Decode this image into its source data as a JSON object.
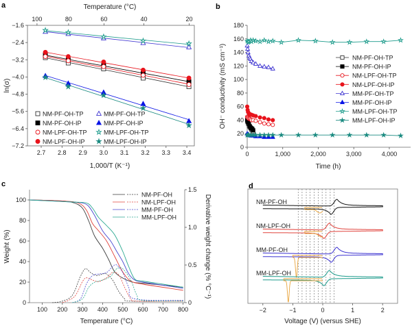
{
  "panel_labels": [
    "a",
    "b",
    "c",
    "d"
  ],
  "chart_data": [
    {
      "type": "scatter",
      "panel": "a",
      "xlabel": "1,000/T (K⁻¹)",
      "ylabel": "ln(σ)",
      "top_xlabel": "Temperature (°C)",
      "xlim": [
        2.634,
        3.436
      ],
      "ylim": [
        -7.2,
        -1.6
      ],
      "xticks": [
        2.7,
        2.8,
        2.9,
        3.0,
        3.1,
        3.2,
        3.3,
        3.4
      ],
      "xtick_labels": [
        "2.7",
        "2.8",
        "2.9",
        "3.0",
        "3.1",
        "3.2",
        "3.3",
        "3.4"
      ],
      "yticks": [
        -1.6,
        -2.4,
        -3.2,
        -4.0,
        -4.8,
        -5.6,
        -6.4,
        -7.2
      ],
      "ytick_labels": [
        "−1.6",
        "−2.4",
        "−3.2",
        "−4.0",
        "−4.8",
        "−5.6",
        "−6.4",
        "−7.2"
      ],
      "top_xticks_celsius": [
        100,
        80,
        60,
        40,
        20
      ],
      "top_xtick_labels": [
        "100",
        "80",
        "60",
        "40",
        "20"
      ],
      "legend_placement": "bottom-left",
      "fit_lines": true,
      "x": [
        2.72,
        2.83,
        3.0,
        3.19,
        3.41
      ],
      "series": [
        {
          "name": "NM-PF-OH-TP",
          "color": "#333333",
          "marker": "square",
          "filled": false,
          "values": [
            -3.1,
            -3.35,
            -3.62,
            -4.05,
            -4.45
          ]
        },
        {
          "name": "NM-PF-OH-IP",
          "color": "#000000",
          "marker": "square",
          "filled": true,
          "values": [
            -2.98,
            -3.2,
            -3.47,
            -3.82,
            -4.22
          ]
        },
        {
          "name": "NM-LPF-OH-TP",
          "color": "#e8141c",
          "marker": "circle",
          "filled": false,
          "values": [
            -3.05,
            -3.25,
            -3.52,
            -3.92,
            -4.35
          ]
        },
        {
          "name": "NM-LPF-OH-IP",
          "color": "#e8141c",
          "marker": "circle",
          "filled": true,
          "values": [
            -2.85,
            -3.05,
            -3.3,
            -3.68,
            -4.05
          ]
        },
        {
          "name": "MM-PF-OH-TP",
          "color": "#3a30d0",
          "marker": "triangle",
          "filled": false,
          "values": [
            -1.9,
            -2.0,
            -2.2,
            -2.42,
            -2.62
          ]
        },
        {
          "name": "MM-PF-OH-IP",
          "color": "#0a14e6",
          "marker": "triangle",
          "filled": true,
          "values": [
            -3.95,
            -4.3,
            -4.72,
            -5.25,
            -6.05
          ]
        },
        {
          "name": "MM-LPF-OH-TP",
          "color": "#1a9a8a",
          "marker": "star",
          "filled": false,
          "values": [
            -1.83,
            -1.93,
            -2.13,
            -2.32,
            -2.45
          ]
        },
        {
          "name": "MM-LPF-OH-IP",
          "color": "#1a8a80",
          "marker": "star",
          "filled": true,
          "values": [
            -4.02,
            -4.45,
            -4.85,
            -5.45,
            -6.25
          ]
        }
      ]
    },
    {
      "type": "line",
      "panel": "b",
      "xlabel": "Time (h)",
      "ylabel": "OH⁻ conductivity (mS cm⁻¹)",
      "xlim": [
        0,
        4600
      ],
      "ylim": [
        0,
        180
      ],
      "xticks": [
        0,
        1000,
        2000,
        3000,
        4000
      ],
      "xtick_labels": [
        "0",
        "1,000",
        "2,000",
        "3,000",
        "4,000"
      ],
      "yticks": [
        0,
        20,
        40,
        60,
        80,
        100,
        120,
        140,
        160,
        180
      ],
      "ytick_labels": [
        "0",
        "20",
        "40",
        "60",
        "80",
        "100",
        "120",
        "140",
        "160",
        "180"
      ],
      "legend_placement": "right",
      "series": [
        {
          "name": "NM-PF-OH-TP",
          "color": "#333333",
          "marker": "square",
          "filled": false,
          "x": [
            0,
            24,
            48,
            72,
            96,
            120,
            144,
            168
          ],
          "y": [
            38,
            35,
            32,
            30,
            28,
            26,
            25,
            23
          ]
        },
        {
          "name": "NM-PF-OH-IP",
          "color": "#000000",
          "marker": "square",
          "filled": true,
          "x": [
            0,
            24,
            48,
            72,
            96,
            120,
            144,
            168
          ],
          "y": [
            40,
            37,
            34,
            31,
            29,
            28,
            27,
            25
          ]
        },
        {
          "name": "NM-LPF-OH-TP",
          "color": "#e8141c",
          "marker": "circle",
          "filled": false,
          "x": [
            0,
            12,
            24,
            48,
            72,
            96,
            120,
            168,
            240,
            360,
            480,
            600,
            720
          ],
          "y": [
            45,
            44,
            43,
            42,
            42,
            41,
            40,
            40,
            39,
            37,
            35,
            34,
            33
          ]
        },
        {
          "name": "NM-LPF-OH-IP",
          "color": "#e8141c",
          "marker": "circle",
          "filled": true,
          "x": [
            0,
            12,
            24,
            48,
            72,
            96,
            120,
            168,
            240,
            360,
            480,
            600,
            720
          ],
          "y": [
            60,
            55,
            52,
            50,
            49,
            48,
            48,
            47,
            46,
            44,
            43,
            41,
            40
          ]
        },
        {
          "name": "MM-PF-OH-TP",
          "color": "#3a30d0",
          "marker": "triangle",
          "filled": false,
          "x": [
            0,
            12,
            24,
            48,
            72,
            96,
            120,
            168,
            240,
            360,
            480,
            600,
            720
          ],
          "y": [
            150,
            145,
            140,
            135,
            132,
            130,
            127,
            125,
            123,
            120,
            119,
            118,
            116
          ]
        },
        {
          "name": "MM-PF-OH-IP",
          "color": "#0a14e6",
          "marker": "triangle",
          "filled": true,
          "x": [
            0,
            24,
            48,
            96,
            168,
            240,
            360,
            480,
            600,
            720
          ],
          "y": [
            20,
            19,
            18,
            17,
            17,
            16,
            16,
            15,
            15,
            15
          ]
        },
        {
          "name": "MM-LPF-OH-TP",
          "color": "#1a9a8a",
          "marker": "star",
          "filled": false,
          "x": [
            0,
            24,
            48,
            96,
            120,
            168,
            240,
            360,
            480,
            600,
            720,
            960,
            1440,
            1920,
            2400,
            2880,
            3360,
            3840,
            4320
          ],
          "y": [
            157,
            155,
            156,
            158,
            156,
            158,
            157,
            156,
            158,
            156,
            157,
            155,
            158,
            157,
            155,
            155,
            156,
            156,
            158
          ]
        },
        {
          "name": "MM-LPF-OH-IP",
          "color": "#1a8a80",
          "marker": "star",
          "filled": true,
          "x": [
            0,
            24,
            48,
            96,
            168,
            240,
            360,
            480,
            600,
            720,
            960,
            1440,
            1920,
            2400,
            2880,
            3360,
            3840,
            4320
          ],
          "y": [
            18,
            18,
            18,
            18,
            18,
            18,
            18,
            18,
            18,
            18,
            18,
            18,
            18,
            18,
            18,
            18,
            18,
            17
          ]
        }
      ]
    },
    {
      "type": "line",
      "panel": "c",
      "xlabel": "Temperature (°C)",
      "ylabel": "Weight (%)",
      "y2label": "Derivative weight change (% °C⁻¹)",
      "xlim": [
        37,
        808
      ],
      "ylim": [
        0,
        110
      ],
      "y2lim": [
        0,
        1.5
      ],
      "xticks": [
        100,
        200,
        300,
        400,
        500,
        600,
        700,
        800
      ],
      "xtick_labels": [
        "100",
        "200",
        "300",
        "400",
        "500",
        "600",
        "700",
        "800"
      ],
      "yticks": [
        0,
        20,
        40,
        60,
        80,
        100
      ],
      "ytick_labels": [
        "0",
        "20",
        "40",
        "60",
        "80",
        "100"
      ],
      "y2ticks": [
        0,
        0.5,
        1.0,
        1.5
      ],
      "y2tick_labels": [
        "0",
        "0.5",
        "1.0",
        "1.5"
      ],
      "legend_placement": "top-right",
      "series": [
        {
          "name": "NM-PF-OH",
          "color": "#3a3a3a",
          "weight": {
            "x": [
              37,
              200,
              260,
              300,
              330,
              360,
              400,
              430,
              460,
              500,
              550,
              600,
              700,
              800
            ],
            "y": [
              100,
              99,
              97,
              92,
              80,
              65,
              53,
              42,
              30,
              24,
              20,
              19,
              17,
              15
            ]
          },
          "dtg": {
            "x": [
              150,
              200,
              250,
              290,
              315,
              340,
              370,
              400,
              420,
              450,
              480,
              510,
              540,
              800
            ],
            "y": [
              0,
              0.02,
              0.1,
              0.35,
              0.45,
              0.4,
              0.36,
              0.38,
              0.38,
              0.3,
              0.15,
              0.05,
              0.02,
              0.02
            ]
          }
        },
        {
          "name": "NM-LPF-OH",
          "color": "#e0403a",
          "weight": {
            "x": [
              37,
              200,
              280,
              320,
              350,
              380,
              420,
              460,
              500,
              540,
              600,
              700,
              800
            ],
            "y": [
              100,
              99,
              97,
              90,
              77,
              70,
              60,
              45,
              30,
              21,
              18,
              15,
              12
            ]
          },
          "dtg": {
            "x": [
              200,
              260,
              300,
              320,
              350,
              380,
              420,
              450,
              480,
              510,
              540,
              570,
              800
            ],
            "y": [
              0,
              0.08,
              0.28,
              0.33,
              0.3,
              0.28,
              0.33,
              0.4,
              0.37,
              0.2,
              0.05,
              0.02,
              0.02
            ]
          }
        },
        {
          "name": "MM-PF-OH",
          "color": "#4a48d0",
          "weight": {
            "x": [
              37,
              250,
              300,
              330,
              360,
              400,
              440,
              470,
              500,
              530,
              560,
              600,
              700,
              800
            ],
            "y": [
              100,
              98,
              97,
              94,
              85,
              70,
              60,
              50,
              40,
              28,
              22,
              20,
              17,
              14
            ]
          },
          "dtg": {
            "x": [
              250,
              290,
              320,
              350,
              380,
              420,
              450,
              470,
              500,
              530,
              560,
              800
            ],
            "y": [
              0,
              0.05,
              0.25,
              0.36,
              0.38,
              0.4,
              0.48,
              0.5,
              0.4,
              0.2,
              0.05,
              0.03
            ]
          }
        },
        {
          "name": "MM-LPF-OH",
          "color": "#2aa890",
          "weight": {
            "x": [
              37,
              250,
              320,
              350,
              380,
              420,
              460,
              500,
              530,
              560,
              600,
              700,
              800
            ],
            "y": [
              100,
              98,
              97,
              92,
              83,
              75,
              66,
              50,
              35,
              23,
              21,
              18,
              15
            ]
          },
          "dtg": {
            "x": [
              250,
              300,
              330,
              360,
              400,
              440,
              470,
              500,
              540,
              570,
              600,
              800
            ],
            "y": [
              0,
              0.05,
              0.2,
              0.27,
              0.3,
              0.35,
              0.45,
              0.45,
              0.3,
              0.1,
              0.03,
              0.02
            ]
          }
        }
      ]
    },
    {
      "type": "line",
      "panel": "d",
      "xlabel": "Voltage (V) (versus SHE)",
      "xlim": [
        -2.5,
        2.5
      ],
      "xticks": [
        -2,
        -1,
        0,
        1,
        2
      ],
      "xtick_labels": [
        "−2",
        "−1",
        "0",
        "1",
        "2"
      ],
      "scan_range_V": [
        -2,
        2
      ],
      "dashed_reference_lines_V": [
        -0.82,
        -0.69,
        -0.55,
        -0.42,
        -0.29,
        -0.15,
        -0.02,
        0.11,
        0.25,
        0.38
      ],
      "side_curve_color": "#e8a33a",
      "series": [
        {
          "name": "NM-PF-OH",
          "color": "#111111",
          "anodic_peak_V": 0.48,
          "cathodic_peak_V": 0.27,
          "side_peak_V": -0.1,
          "side_start_V": -0.6
        },
        {
          "name": "NM-LPF-OH",
          "color": "#e0403a",
          "anodic_peak_V": 0.23,
          "cathodic_peak_V": 0.03,
          "side_peak_V": -0.05,
          "side_start_V": -0.6
        },
        {
          "name": "MM-PF-OH",
          "color": "#3a30d0",
          "anodic_peak_V": 0.48,
          "cathodic_peak_V": 0.27,
          "side_peak_V": -0.88,
          "side_start_V": -1.0
        },
        {
          "name": "MM-LPF-OH",
          "color": "#1a9a8a",
          "anodic_peak_V": 0.23,
          "cathodic_peak_V": 0.03,
          "side_peak_V": -1.15,
          "side_start_V": -1.3
        }
      ]
    }
  ]
}
